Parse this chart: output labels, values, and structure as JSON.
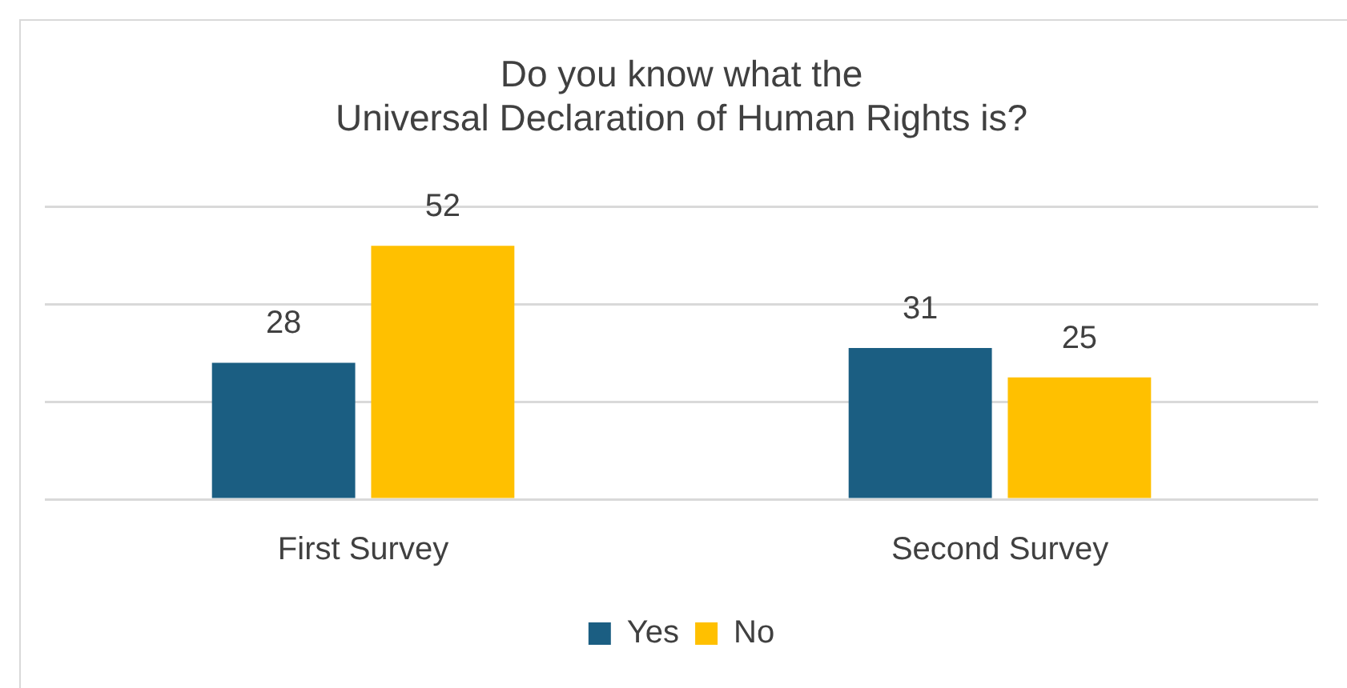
{
  "chart_data": {
    "type": "bar",
    "title": "Do you know what the\nUniversal Declaration of Human Rights is?",
    "categories": [
      "First Survey",
      "Second Survey"
    ],
    "series": [
      {
        "name": "Yes",
        "color": "#1b5e82",
        "values": [
          28,
          31
        ]
      },
      {
        "name": "No",
        "color": "#ffc000",
        "values": [
          52,
          25
        ]
      }
    ],
    "ylim": [
      0,
      60
    ],
    "yticks": [
      {
        "value": 0,
        "label": null
      },
      {
        "value": 20,
        "label": null
      },
      {
        "value": 40,
        "label": null
      },
      {
        "value": 60,
        "label": null
      }
    ],
    "tick_labels": "x",
    "grid": "y",
    "legend": "bottom",
    "data_labels": true
  }
}
